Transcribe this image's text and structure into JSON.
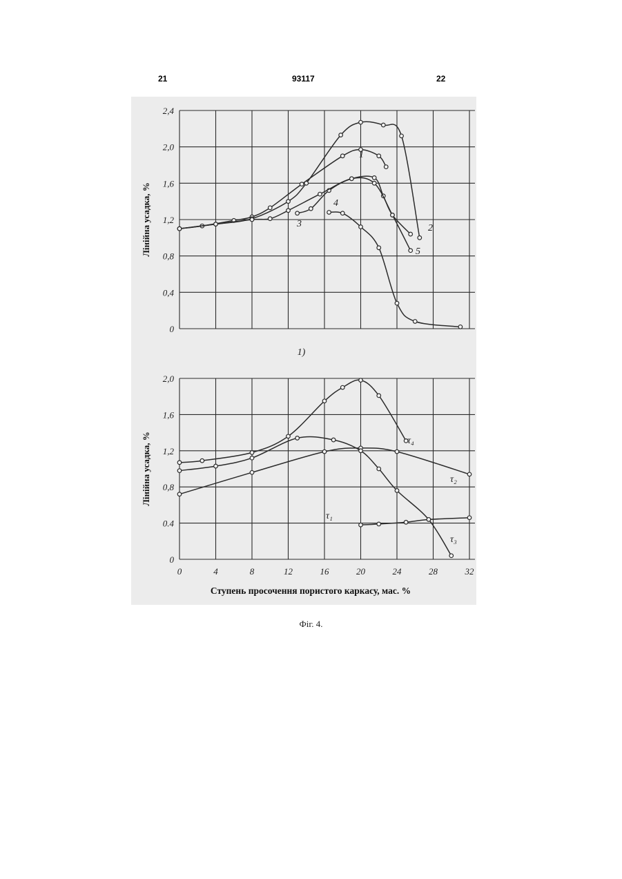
{
  "header": {
    "page_left": "21",
    "patent_number": "93117",
    "page_right": "22"
  },
  "caption": "Фіг. 4.",
  "colors": {
    "background": "#ececec",
    "line": "#2b2b2b",
    "grid": "#2a2a2a"
  },
  "chart_data": [
    {
      "type": "line",
      "panel_label": "1)",
      "title": "",
      "ylabel": "Лінійна усадка, %",
      "xlabel": "",
      "xlim": [
        0,
        32
      ],
      "ylim": [
        0,
        2.4
      ],
      "x_ticks": [
        0,
        4,
        8,
        12,
        16,
        20,
        24,
        28,
        32
      ],
      "y_ticks": [
        0,
        0.4,
        0.8,
        1.2,
        1.6,
        2.0,
        2.4
      ],
      "y_tick_labels": [
        "0",
        "0,4",
        "0,8",
        "1,2",
        "1,6",
        "2,0",
        "2,4"
      ],
      "grid": true,
      "series": [
        {
          "name": "1",
          "points": [
            [
              0,
              1.1
            ],
            [
              2.5,
              1.13
            ],
            [
              6,
              1.19
            ],
            [
              8,
              1.23
            ],
            [
              10,
              1.33
            ],
            [
              13.5,
              1.59
            ],
            [
              18,
              1.9
            ],
            [
              20,
              1.97
            ],
            [
              22,
              1.9
            ],
            [
              22.8,
              1.78
            ]
          ]
        },
        {
          "name": "2",
          "points": [
            [
              0,
              1.1
            ],
            [
              4,
              1.15
            ],
            [
              8,
              1.21
            ],
            [
              12,
              1.4
            ],
            [
              14,
              1.6
            ],
            [
              17.8,
              2.13
            ],
            [
              20,
              2.27
            ],
            [
              22.5,
              2.24
            ],
            [
              24.5,
              2.12
            ],
            [
              26.5,
              1.0
            ]
          ]
        },
        {
          "name": "3",
          "points": [
            [
              13,
              1.27
            ],
            [
              14.5,
              1.32
            ],
            [
              16.5,
              1.52
            ],
            [
              19,
              1.65
            ],
            [
              21.5,
              1.66
            ],
            [
              22.5,
              1.46
            ],
            [
              23.5,
              1.25
            ],
            [
              25.5,
              1.04
            ]
          ]
        },
        {
          "name": "4",
          "points": [
            [
              16.5,
              1.28
            ],
            [
              18,
              1.27
            ],
            [
              20,
              1.12
            ],
            [
              22,
              0.89
            ],
            [
              24,
              0.28
            ],
            [
              26,
              0.08
            ],
            [
              31,
              0.02
            ]
          ]
        },
        {
          "name": "5",
          "points": [
            [
              0,
              1.1
            ],
            [
              4,
              1.15
            ],
            [
              8,
              1.2
            ],
            [
              10,
              1.21
            ],
            [
              12,
              1.3
            ],
            [
              15.5,
              1.48
            ],
            [
              19,
              1.65
            ],
            [
              21.5,
              1.6
            ],
            [
              23.5,
              1.25
            ],
            [
              25.5,
              0.86
            ]
          ]
        }
      ],
      "label_positions_data": []
    },
    {
      "type": "line",
      "title": "",
      "ylabel": "Лінійна усадка, %",
      "xlabel": "Ступень просочення пористого каркасу, мас. %",
      "xlim": [
        0,
        32
      ],
      "ylim": [
        0,
        2.0
      ],
      "x_ticks": [
        0,
        4,
        8,
        12,
        16,
        20,
        24,
        28,
        32
      ],
      "y_ticks": [
        0,
        0.4,
        0.8,
        1.2,
        1.6,
        2.0
      ],
      "y_tick_labels": [
        "0",
        "0.4",
        "0,8",
        "1,2",
        "1,6",
        "2,0"
      ],
      "grid": true,
      "series": [
        {
          "name": "τ₁",
          "points": [
            [
              20,
              0.38
            ],
            [
              22,
              0.39
            ],
            [
              25,
              0.41
            ],
            [
              27.5,
              0.44
            ],
            [
              32,
              0.46
            ]
          ]
        },
        {
          "name": "τ₂",
          "points": [
            [
              0,
              0.72
            ],
            [
              8,
              0.96
            ],
            [
              16,
              1.19
            ],
            [
              20,
              1.23
            ],
            [
              24,
              1.19
            ],
            [
              32,
              0.94
            ]
          ]
        },
        {
          "name": "τ₃",
          "points": [
            [
              0,
              0.98
            ],
            [
              4,
              1.03
            ],
            [
              8,
              1.12
            ],
            [
              13,
              1.34
            ],
            [
              17,
              1.32
            ],
            [
              20,
              1.2
            ],
            [
              22,
              1.0
            ],
            [
              24,
              0.76
            ],
            [
              27.5,
              0.44
            ],
            [
              30,
              0.04
            ]
          ]
        },
        {
          "name": "τ₄",
          "points": [
            [
              0,
              1.07
            ],
            [
              2.5,
              1.09
            ],
            [
              8,
              1.18
            ],
            [
              12,
              1.36
            ],
            [
              16,
              1.75
            ],
            [
              18,
              1.9
            ],
            [
              20,
              1.98
            ],
            [
              22,
              1.81
            ],
            [
              25,
              1.31
            ]
          ]
        }
      ]
    }
  ],
  "series_labels_top": [
    "1",
    "2",
    "3",
    "4",
    "5"
  ],
  "series_labels_bottom": [
    "τ₁",
    "τ₂",
    "τ₃",
    "τ₄"
  ]
}
